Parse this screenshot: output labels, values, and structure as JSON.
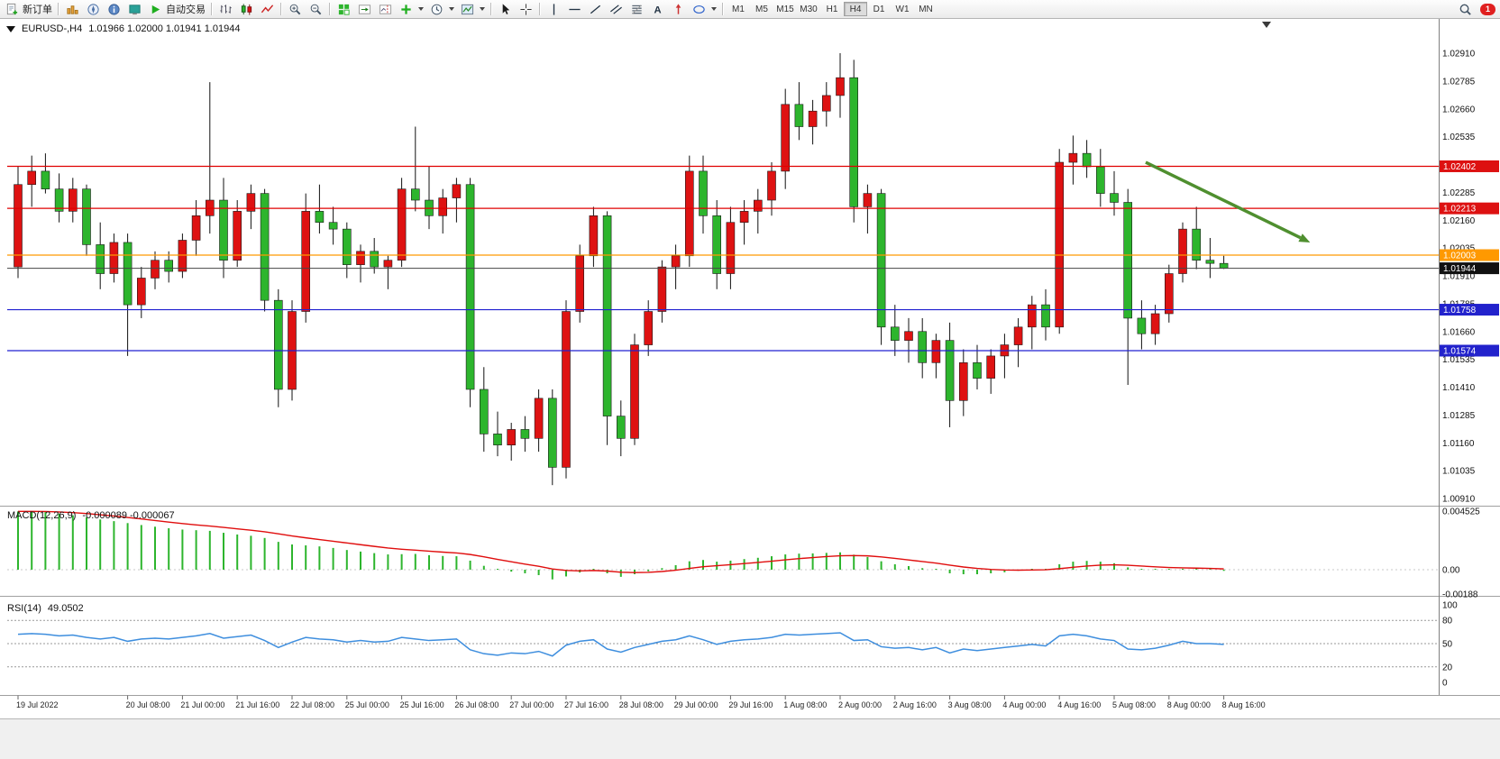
{
  "window": {
    "notifications_count": "1"
  },
  "toolbar": {
    "new_order": "新订单",
    "autotrading": "自动交易",
    "timeframes": [
      "M1",
      "M5",
      "M15",
      "M30",
      "H1",
      "H4",
      "D1",
      "W1",
      "MN"
    ],
    "active_timeframe": "H4"
  },
  "icons": {
    "new-order": "white document with green plus",
    "market-watch": "gold bar chart",
    "navigator": "blue compass needle",
    "data-window": "blue info circle",
    "terminal": "teal panel",
    "autotrading": "green play triangle",
    "bars-chart": "ohlc bars",
    "candles-chart": "red and green candlesticks",
    "line-chart": "red zigzag line",
    "zoom-in": "magnifier with plus",
    "zoom-out": "magnifier with minus",
    "indicators-grid": "green tile grid",
    "auto-scroll": "chart with green arrow",
    "chart-shift": "chart with dashed red offset line",
    "indicators-add": "green plus with caret",
    "periods": "clock with caret",
    "templates": "picture with caret",
    "cursor": "pointer arrow",
    "crosshair": "cross",
    "vertical-line": "vertical line",
    "horizontal-line": "horizontal line",
    "trendline": "diagonal line",
    "channel": "parallel diagonal lines",
    "fibonacci": "stacked lines with diagonal",
    "text_glyph": "A",
    "arrows": "red up arrow",
    "shapes": "ellipse with caret",
    "search": "magnifier",
    "one-click-trading": "black down triangle",
    "chart-shift-marker": "dark down triangle"
  },
  "chart": {
    "symbol_period": "EURUSD-,H4",
    "ohlc_text": "1.01966 1.02000 1.01941 1.01944"
  },
  "indicators": {
    "macd_label": "MACD(12,26,9)",
    "macd_values": "-0.000089 -0.000067",
    "rsi_label": "RSI(14)",
    "rsi_value": "49.0502"
  },
  "chart_data": [
    {
      "type": "candlestick",
      "symbol": "EURUSD-",
      "timeframe": "H4",
      "ylim": [
        1.0088,
        1.0294
      ],
      "price_ticks": [
        "1.02910",
        "1.02785",
        "1.02660",
        "1.02535",
        "1.02410",
        "1.02285",
        "1.02160",
        "1.02035",
        "1.01910",
        "1.01785",
        "1.01660",
        "1.01535",
        "1.01410",
        "1.01285",
        "1.01160",
        "1.01035",
        "1.00910"
      ],
      "x_labels": [
        {
          "i": 0,
          "label": "19 Jul 2022"
        },
        {
          "i": 8,
          "label": "20 Jul 08:00"
        },
        {
          "i": 12,
          "label": "21 Jul 00:00"
        },
        {
          "i": 16,
          "label": "21 Jul 16:00"
        },
        {
          "i": 20,
          "label": "22 Jul 08:00"
        },
        {
          "i": 24,
          "label": "25 Jul 00:00"
        },
        {
          "i": 28,
          "label": "25 Jul 16:00"
        },
        {
          "i": 32,
          "label": "26 Jul 08:00"
        },
        {
          "i": 36,
          "label": "27 Jul 00:00"
        },
        {
          "i": 40,
          "label": "27 Jul 16:00"
        },
        {
          "i": 44,
          "label": "28 Jul 08:00"
        },
        {
          "i": 48,
          "label": "29 Jul 00:00"
        },
        {
          "i": 52,
          "label": "29 Jul 16:00"
        },
        {
          "i": 56,
          "label": "1 Aug 08:00"
        },
        {
          "i": 60,
          "label": "2 Aug 00:00"
        },
        {
          "i": 64,
          "label": "2 Aug 16:00"
        },
        {
          "i": 68,
          "label": "3 Aug 08:00"
        },
        {
          "i": 72,
          "label": "4 Aug 00:00"
        },
        {
          "i": 76,
          "label": "4 Aug 16:00"
        },
        {
          "i": 80,
          "label": "5 Aug 08:00"
        },
        {
          "i": 84,
          "label": "8 Aug 00:00"
        },
        {
          "i": 88,
          "label": "8 Aug 16:00"
        }
      ],
      "ohlc": [
        [
          1.0195,
          1.024,
          1.019,
          1.0232
        ],
        [
          1.0232,
          1.0245,
          1.0222,
          1.0238
        ],
        [
          1.0238,
          1.0246,
          1.0228,
          1.023
        ],
        [
          1.023,
          1.0237,
          1.0215,
          1.022
        ],
        [
          1.022,
          1.0235,
          1.0215,
          1.023
        ],
        [
          1.023,
          1.0232,
          1.02,
          1.0205
        ],
        [
          1.0205,
          1.0215,
          1.0185,
          1.0192
        ],
        [
          1.0192,
          1.021,
          1.0188,
          1.0206
        ],
        [
          1.0206,
          1.021,
          1.0155,
          1.0178
        ],
        [
          1.0178,
          1.0195,
          1.0172,
          1.019
        ],
        [
          1.019,
          1.0202,
          1.0185,
          1.0198
        ],
        [
          1.0198,
          1.0202,
          1.0188,
          1.0193
        ],
        [
          1.0193,
          1.021,
          1.019,
          1.0207
        ],
        [
          1.0207,
          1.0225,
          1.02,
          1.0218
        ],
        [
          1.0218,
          1.0278,
          1.021,
          1.0225
        ],
        [
          1.0225,
          1.0235,
          1.019,
          1.0198
        ],
        [
          1.0198,
          1.0225,
          1.0195,
          1.022
        ],
        [
          1.022,
          1.0232,
          1.0212,
          1.0228
        ],
        [
          1.0228,
          1.023,
          1.0175,
          1.018
        ],
        [
          1.018,
          1.0185,
          1.0132,
          1.014
        ],
        [
          1.014,
          1.018,
          1.0135,
          1.0175
        ],
        [
          1.0175,
          1.0228,
          1.017,
          1.022
        ],
        [
          1.022,
          1.0232,
          1.021,
          1.0215
        ],
        [
          1.0215,
          1.0222,
          1.0205,
          1.0212
        ],
        [
          1.0212,
          1.0215,
          1.019,
          1.0196
        ],
        [
          1.0196,
          1.0205,
          1.0188,
          1.0202
        ],
        [
          1.0202,
          1.0208,
          1.0192,
          1.0195
        ],
        [
          1.0195,
          1.02,
          1.0185,
          1.0198
        ],
        [
          1.0198,
          1.0235,
          1.0195,
          1.023
        ],
        [
          1.023,
          1.0258,
          1.022,
          1.0225
        ],
        [
          1.0225,
          1.024,
          1.0212,
          1.0218
        ],
        [
          1.0218,
          1.023,
          1.021,
          1.0226
        ],
        [
          1.0226,
          1.0235,
          1.0215,
          1.0232
        ],
        [
          1.0232,
          1.0235,
          1.0132,
          1.014
        ],
        [
          1.014,
          1.015,
          1.0112,
          1.012
        ],
        [
          1.012,
          1.013,
          1.011,
          1.0115
        ],
        [
          1.0115,
          1.0125,
          1.0108,
          1.0122
        ],
        [
          1.0122,
          1.0128,
          1.0112,
          1.0118
        ],
        [
          1.0118,
          1.014,
          1.0112,
          1.0136
        ],
        [
          1.0136,
          1.014,
          1.0097,
          1.0105
        ],
        [
          1.0105,
          1.018,
          1.01,
          1.0175
        ],
        [
          1.0175,
          1.0205,
          1.017,
          1.02
        ],
        [
          1.02,
          1.0222,
          1.0195,
          1.0218
        ],
        [
          1.0218,
          1.022,
          1.0115,
          1.0128
        ],
        [
          1.0128,
          1.0135,
          1.011,
          1.0118
        ],
        [
          1.0118,
          1.0165,
          1.0115,
          1.016
        ],
        [
          1.016,
          1.018,
          1.0155,
          1.0175
        ],
        [
          1.0175,
          1.0198,
          1.017,
          1.0195
        ],
        [
          1.0195,
          1.0205,
          1.0185,
          1.02
        ],
        [
          1.02,
          1.0245,
          1.0195,
          1.0238
        ],
        [
          1.0238,
          1.0245,
          1.021,
          1.0218
        ],
        [
          1.0218,
          1.0225,
          1.0185,
          1.0192
        ],
        [
          1.0192,
          1.0222,
          1.0185,
          1.0215
        ],
        [
          1.0215,
          1.0225,
          1.0205,
          1.022
        ],
        [
          1.022,
          1.023,
          1.021,
          1.0225
        ],
        [
          1.0225,
          1.0242,
          1.0218,
          1.0238
        ],
        [
          1.0238,
          1.0275,
          1.023,
          1.0268
        ],
        [
          1.0268,
          1.0278,
          1.0252,
          1.0258
        ],
        [
          1.0258,
          1.027,
          1.025,
          1.0265
        ],
        [
          1.0265,
          1.0278,
          1.0258,
          1.0272
        ],
        [
          1.0272,
          1.0291,
          1.0262,
          1.028
        ],
        [
          1.028,
          1.0288,
          1.0215,
          1.0222
        ],
        [
          1.0222,
          1.0232,
          1.021,
          1.0228
        ],
        [
          1.0228,
          1.023,
          1.016,
          1.0168
        ],
        [
          1.0168,
          1.0178,
          1.0155,
          1.0162
        ],
        [
          1.0162,
          1.0172,
          1.0152,
          1.0166
        ],
        [
          1.0166,
          1.0172,
          1.0145,
          1.0152
        ],
        [
          1.0152,
          1.0165,
          1.0145,
          1.0162
        ],
        [
          1.0162,
          1.017,
          1.0123,
          1.0135
        ],
        [
          1.0135,
          1.0158,
          1.0128,
          1.0152
        ],
        [
          1.0152,
          1.016,
          1.014,
          1.0145
        ],
        [
          1.0145,
          1.0158,
          1.0138,
          1.0155
        ],
        [
          1.0155,
          1.0165,
          1.0145,
          1.016
        ],
        [
          1.016,
          1.0172,
          1.015,
          1.0168
        ],
        [
          1.0168,
          1.0182,
          1.0158,
          1.0178
        ],
        [
          1.0178,
          1.0185,
          1.0162,
          1.0168
        ],
        [
          1.0168,
          1.0248,
          1.0165,
          1.0242
        ],
        [
          1.0242,
          1.0254,
          1.0232,
          1.0246
        ],
        [
          1.0246,
          1.0252,
          1.0235,
          1.024
        ],
        [
          1.024,
          1.0248,
          1.0222,
          1.0228
        ],
        [
          1.0228,
          1.0238,
          1.0218,
          1.0224
        ],
        [
          1.0224,
          1.023,
          1.0142,
          1.0172
        ],
        [
          1.0172,
          1.018,
          1.0158,
          1.0165
        ],
        [
          1.0165,
          1.0178,
          1.016,
          1.0174
        ],
        [
          1.0174,
          1.0196,
          1.017,
          1.0192
        ],
        [
          1.0192,
          1.0215,
          1.0188,
          1.0212
        ],
        [
          1.0212,
          1.0222,
          1.0194,
          1.0198
        ],
        [
          1.0198,
          1.0208,
          1.019,
          1.01966
        ],
        [
          1.01966,
          1.02,
          1.01941,
          1.01944
        ]
      ],
      "hlines": [
        {
          "price": 1.02402,
          "color": "#e00000"
        },
        {
          "price": 1.02213,
          "color": "#e00000"
        },
        {
          "price": 1.02003,
          "color": "#ff9900"
        },
        {
          "price": 1.01758,
          "color": "#2020d0"
        },
        {
          "price": 1.01574,
          "color": "#2020d0"
        }
      ],
      "bid_line": {
        "price": 1.01944,
        "color": "#444444"
      },
      "tags": [
        {
          "price": 1.02402,
          "label": "1.02402",
          "color": "#dd1111"
        },
        {
          "price": 1.02213,
          "label": "1.02213",
          "color": "#dd1111"
        },
        {
          "price": 1.02003,
          "label": "1.02003",
          "color": "#ff9900"
        },
        {
          "price": 1.01944,
          "label": "1.01944",
          "color": "#111111"
        },
        {
          "price": 1.01758,
          "label": "1.01758",
          "color": "#2222cc"
        },
        {
          "price": 1.01574,
          "label": "1.01574",
          "color": "#2222cc"
        }
      ],
      "annotation_arrow": {
        "from_i": 82.3,
        "from_price": 1.0242,
        "to_i": 94.3,
        "to_price": 1.0206,
        "color": "#4f8f2f"
      },
      "colors": {
        "bull": "#de1212",
        "bear": "#2db52d",
        "wick": "#111111"
      }
    },
    {
      "type": "bar",
      "name": "MACD(12,26,9)",
      "main_value": -8.9e-05,
      "signal_value": -6.7e-05,
      "signal_ema": 9,
      "values": [
        0.0045,
        0.00452,
        0.00445,
        0.00432,
        0.0042,
        0.00405,
        0.00388,
        0.00375,
        0.0036,
        0.00345,
        0.00332,
        0.0032,
        0.0031,
        0.00305,
        0.003,
        0.00285,
        0.00272,
        0.00262,
        0.00245,
        0.00215,
        0.00195,
        0.00188,
        0.0018,
        0.00168,
        0.00152,
        0.0014,
        0.00128,
        0.00118,
        0.0012,
        0.00122,
        0.00112,
        0.00106,
        0.00104,
        0.0007,
        0.0003,
        0,
        -0.00015,
        -0.00028,
        -0.00042,
        -0.00075,
        -0.00052,
        -0.00022,
        5e-05,
        -0.00028,
        -0.00055,
        -0.00035,
        -0.00012,
        0.00012,
        0.00035,
        0.00065,
        0.00075,
        0.00062,
        0.0007,
        0.00082,
        0.00092,
        0.00104,
        0.00118,
        0.00124,
        0.00126,
        0.0013,
        0.00134,
        0.00116,
        0.00098,
        0.00065,
        0.00042,
        0.00028,
        0.00012,
        2e-05,
        -0.00028,
        -0.00035,
        -0.00035,
        -0.00028,
        -0.0002,
        -8e-05,
        2e-05,
        6e-05,
        0.00042,
        0.00062,
        0.00068,
        0.00062,
        0.0005,
        0.00018,
        4e-05,
        -2e-05,
        -2e-05,
        2e-05,
        4e-05,
        0,
        -8.9e-05
      ],
      "axis_labels": [
        {
          "v": 0.004525,
          "t": "0.004525"
        },
        {
          "v": 0,
          "t": "0.00"
        },
        {
          "v": -0.00188,
          "t": "-0.00188"
        }
      ],
      "colors": {
        "hist": "#2db52d",
        "signal": "#e00e0e"
      }
    },
    {
      "type": "line",
      "name": "RSI(14)",
      "value": 49.0502,
      "ylim": [
        0,
        100
      ],
      "levels": [
        80,
        50,
        20
      ],
      "axis_labels": [
        "100",
        "80",
        "50",
        "20",
        "0"
      ],
      "values": [
        62,
        63,
        62,
        60,
        61,
        58,
        56,
        58,
        53,
        56,
        57,
        56,
        58,
        60,
        63,
        57,
        59,
        61,
        54,
        45,
        52,
        58,
        56,
        55,
        52,
        54,
        52,
        53,
        58,
        56,
        54,
        55,
        56,
        42,
        37,
        35,
        38,
        37,
        40,
        34,
        48,
        53,
        55,
        43,
        39,
        45,
        49,
        53,
        55,
        60,
        55,
        49,
        53,
        55,
        56,
        58,
        62,
        61,
        62,
        63,
        64,
        54,
        55,
        46,
        44,
        45,
        42,
        45,
        38,
        43,
        41,
        43,
        45,
        47,
        49,
        47,
        60,
        62,
        60,
        56,
        54,
        43,
        42,
        44,
        48,
        53,
        50,
        50,
        49.05
      ],
      "color": "#3e8ede"
    }
  ]
}
